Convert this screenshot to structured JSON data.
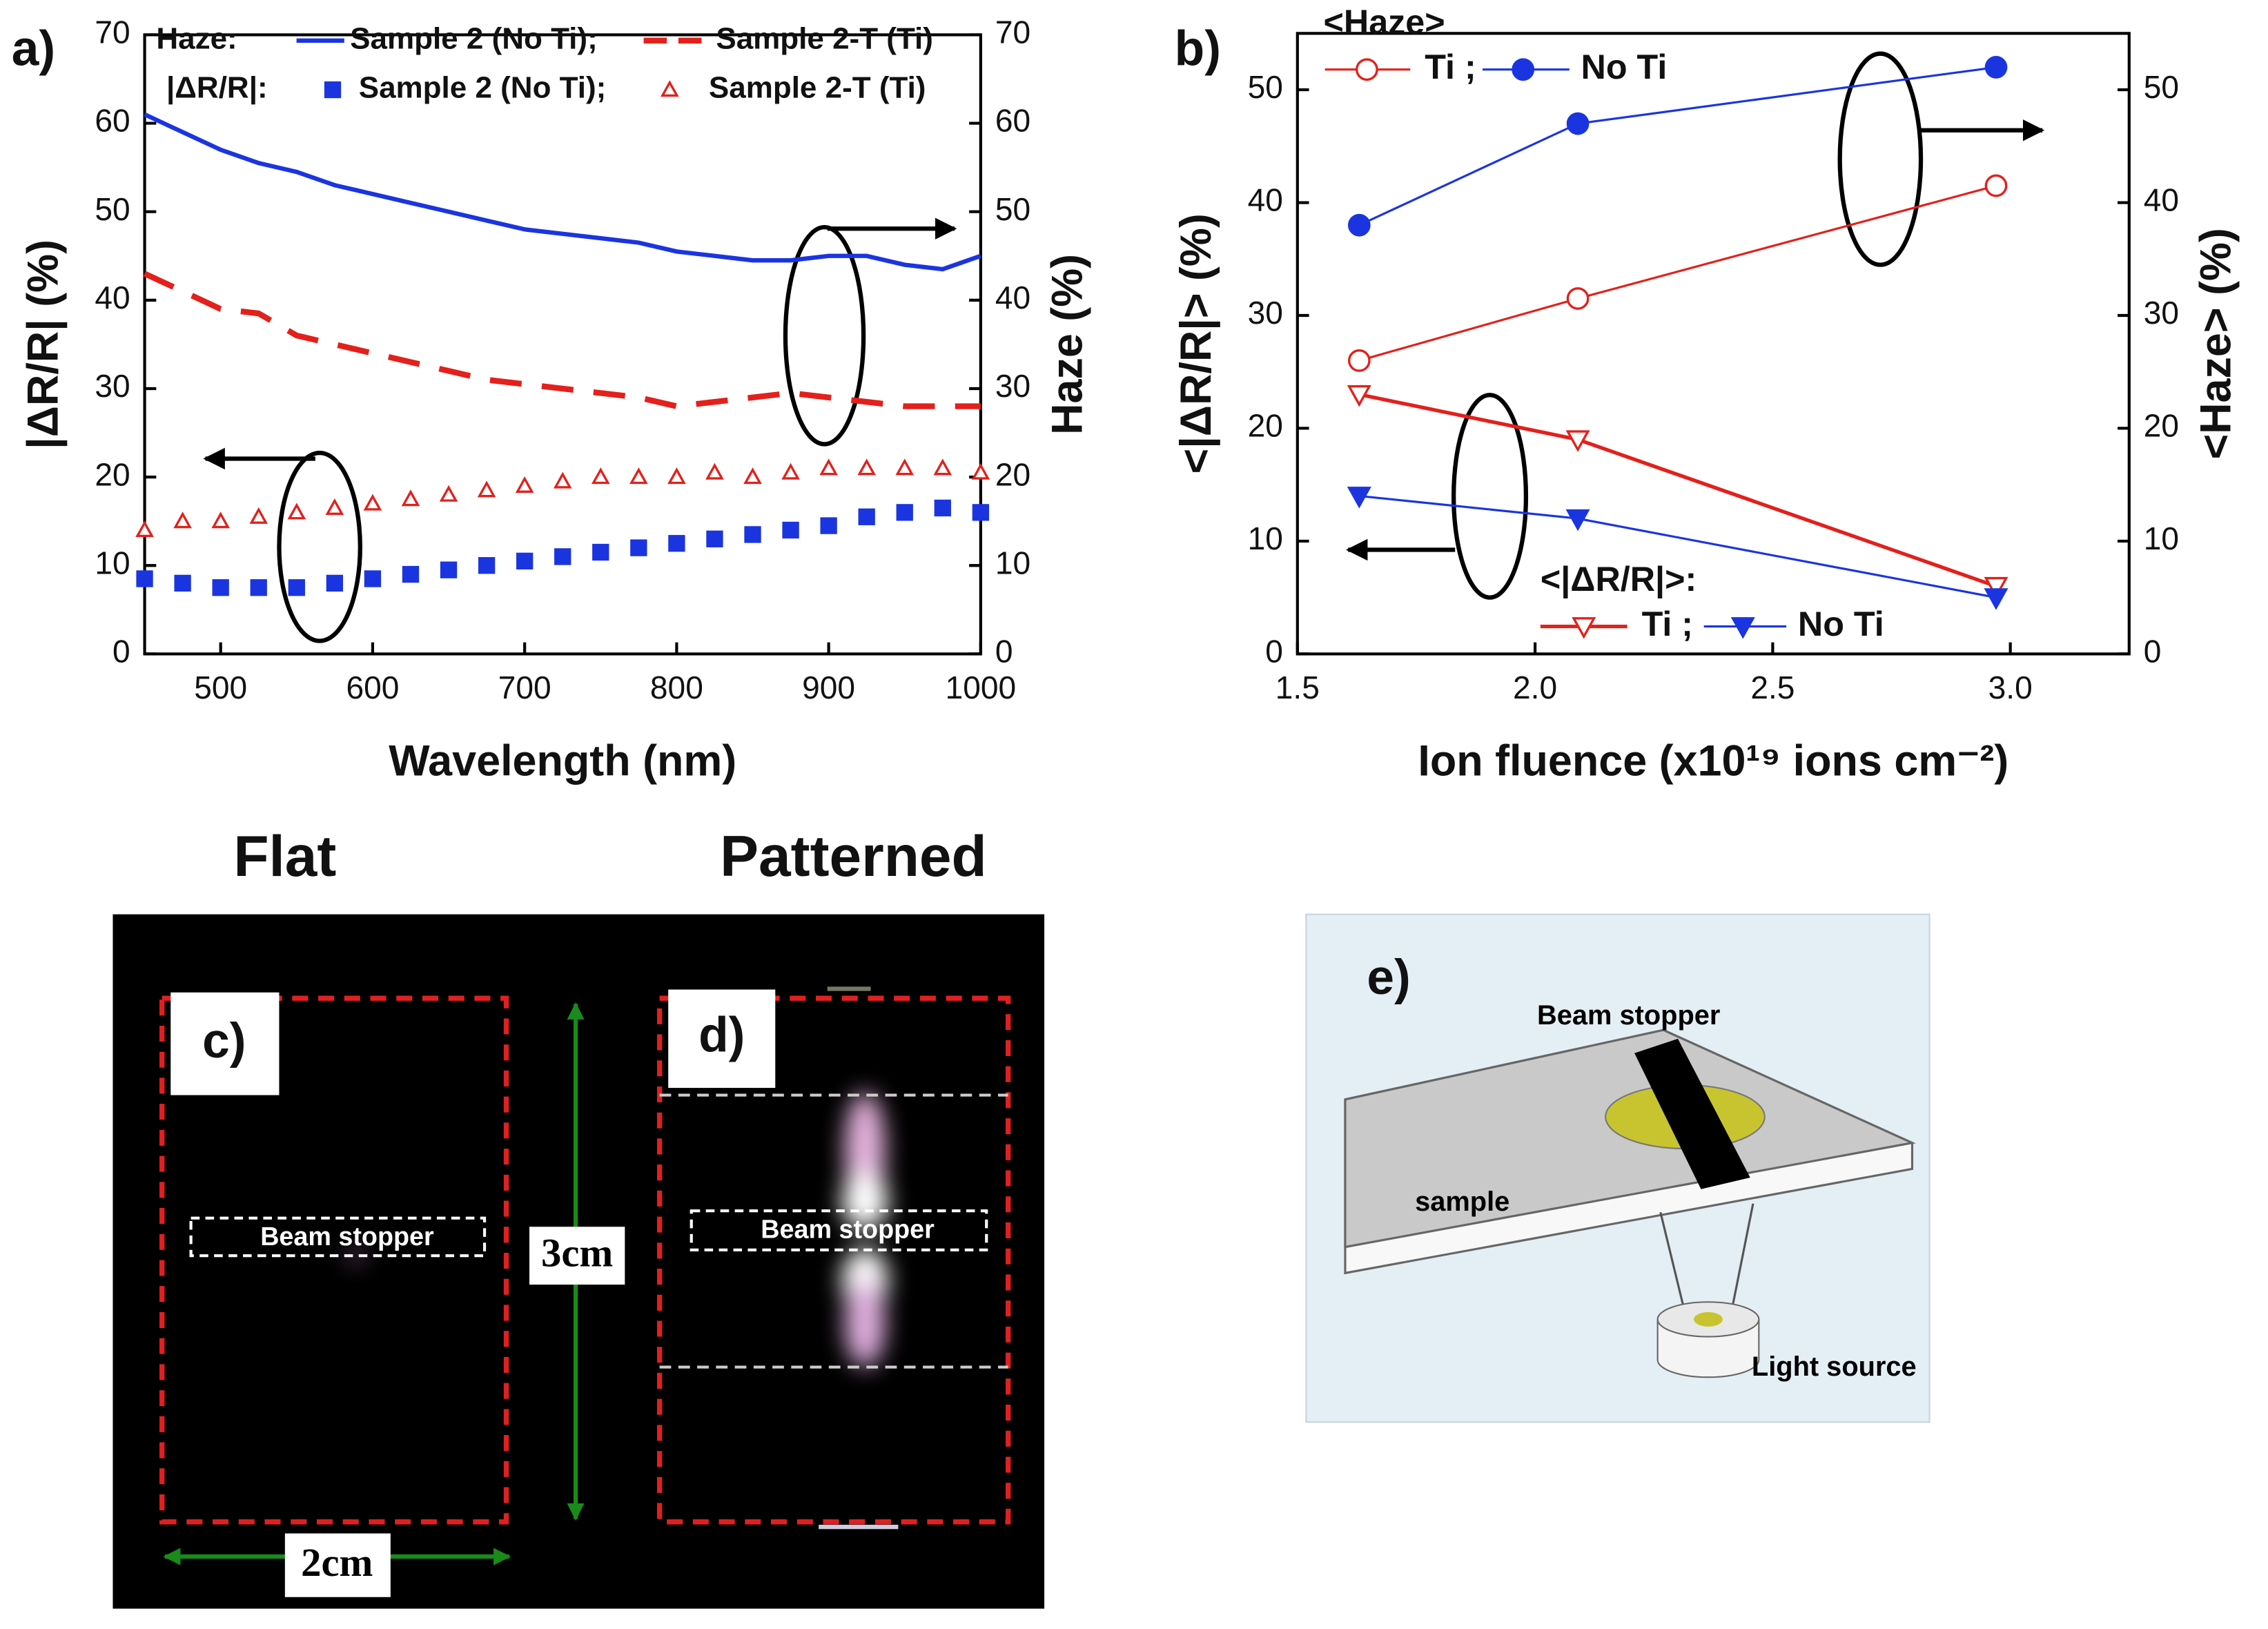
{
  "chart_data": [
    {
      "type": "line",
      "panel_label": "a)",
      "x_label": "Wavelength (nm)",
      "y_label": "|ΔR/R| (%)",
      "y2_label": "Haze (%)",
      "legend_groups": [
        "Haze:",
        "|ΔR/R|:"
      ],
      "x": [
        450,
        475,
        500,
        525,
        550,
        575,
        600,
        625,
        650,
        675,
        700,
        725,
        750,
        775,
        800,
        825,
        850,
        875,
        900,
        925,
        950,
        975,
        1000
      ],
      "series": [
        {
          "name": "Sample 2 (No Ti);",
          "color": "#1a35e0",
          "axis": "y2",
          "line": "solid",
          "values": [
            61,
            59,
            57,
            55.5,
            54.5,
            53,
            52,
            51,
            50,
            49,
            48,
            47.5,
            47,
            46.5,
            45.5,
            45,
            44.5,
            44.5,
            45,
            45,
            44,
            43.5,
            45
          ]
        },
        {
          "name": "Sample 2-T (Ti)",
          "color": "#e3201b",
          "axis": "y2",
          "line": "dashed",
          "values": [
            43,
            41,
            39,
            38.5,
            36,
            35,
            34,
            33,
            32,
            31,
            30.5,
            30,
            29.5,
            29,
            28,
            28.5,
            29,
            29.5,
            29,
            28.5,
            28,
            28,
            28
          ]
        },
        {
          "name": "Sample 2 (No Ti);",
          "color": "#1a35e0",
          "marker": "square",
          "values": [
            8.5,
            8,
            7.5,
            7.5,
            7.5,
            8,
            8.5,
            9,
            9.5,
            10,
            10.5,
            11,
            11.5,
            12,
            12.5,
            13,
            13.5,
            14,
            14.5,
            15.5,
            16,
            16.5,
            16
          ]
        },
        {
          "name": "Sample 2-T (Ti)",
          "color": "#e3201b",
          "marker": "triangle-open",
          "values": [
            14,
            15,
            15,
            15.5,
            16,
            16.5,
            17,
            17.5,
            18,
            18.5,
            19,
            19.5,
            20,
            20,
            20,
            20.5,
            20,
            20.5,
            21,
            21,
            21,
            21,
            20.5
          ]
        }
      ],
      "xlim": [
        450,
        1000
      ],
      "xticks": [
        500,
        600,
        700,
        800,
        900,
        1000
      ],
      "ylim": [
        0,
        70
      ],
      "yticks": [
        0,
        10,
        20,
        30,
        40,
        50,
        60,
        70
      ],
      "y2lim": [
        0,
        70
      ],
      "y2ticks": [
        0,
        10,
        20,
        30,
        40,
        50,
        60,
        70
      ]
    },
    {
      "type": "line",
      "panel_label": "b)",
      "x_label": "Ion fluence (x10¹⁹ ions cm⁻²)",
      "y_label": "<|ΔR/R|> (%)",
      "y2_label": "<Haze> (%)",
      "legend_groups": [
        "<Haze>",
        "<|ΔR/R|>:"
      ],
      "x": [
        1.63,
        2.09,
        2.97
      ],
      "series": [
        {
          "name": "Ti ;",
          "color": "#e3201b",
          "axis": "y2",
          "line": "solid",
          "marker": "circle-open",
          "values": [
            26,
            31.5,
            41.5
          ]
        },
        {
          "name": "No Ti",
          "color": "#1a35e0",
          "axis": "y2",
          "line": "solid",
          "marker": "circle",
          "values": [
            38,
            47,
            52
          ]
        },
        {
          "name": "Ti ;",
          "color": "#e3201b",
          "line": "solid",
          "marker": "triangle-down-open",
          "values": [
            23,
            19,
            6
          ]
        },
        {
          "name": "No Ti",
          "color": "#1a35e0",
          "line": "solid",
          "marker": "triangle-down",
          "values": [
            14,
            12,
            5
          ]
        }
      ],
      "xlim": [
        1.5,
        3.25
      ],
      "xticks": [
        {
          "value": 1.5,
          "label": "1.5"
        },
        {
          "value": 2.0,
          "label": "2.0"
        },
        {
          "value": 2.5,
          "label": "2.5"
        },
        {
          "value": 3.0,
          "label": "3.0"
        }
      ],
      "ylim": [
        0,
        55
      ],
      "yticks": [
        0,
        10,
        20,
        30,
        40,
        50
      ],
      "y2lim": [
        0,
        55
      ],
      "y2ticks": [
        0,
        10,
        20,
        30,
        40,
        50
      ]
    }
  ],
  "panels": {
    "titles": [
      "Flat",
      "Patterned"
    ],
    "c": {
      "label": "c)",
      "beam_stopper": "Beam stopper",
      "height": "3cm",
      "width": "2cm"
    },
    "d": {
      "label": "d)",
      "beam_stopper": "Beam stopper"
    },
    "e": {
      "label": "e)",
      "beam_stopper": "Beam stopper",
      "sample": "sample",
      "light_source": "Light source"
    }
  }
}
